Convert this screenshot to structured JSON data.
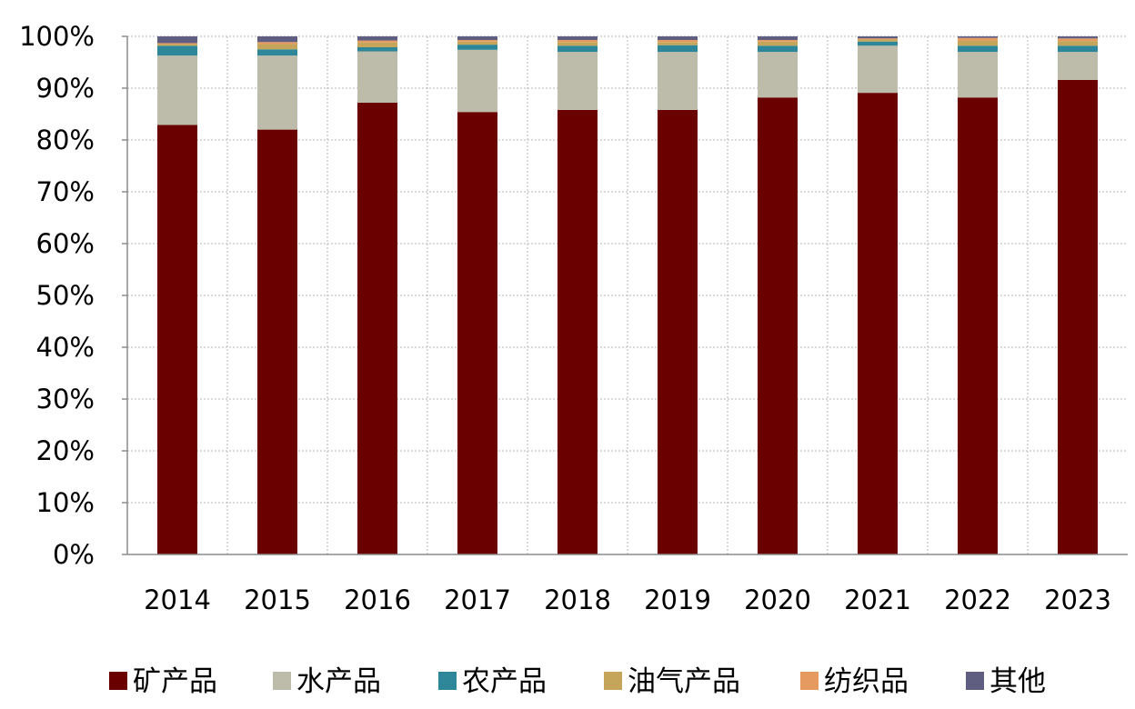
{
  "chart_data": {
    "type": "bar",
    "stacked": true,
    "percent_stacked": true,
    "title": "",
    "xlabel": "",
    "ylabel": "",
    "ylim": [
      0,
      100
    ],
    "y_tick_labels": [
      "0%",
      "10%",
      "20%",
      "30%",
      "40%",
      "50%",
      "60%",
      "70%",
      "80%",
      "90%",
      "100%"
    ],
    "categories": [
      "2014",
      "2015",
      "2016",
      "2017",
      "2018",
      "2019",
      "2020",
      "2021",
      "2022",
      "2023"
    ],
    "grid": true,
    "legend_position": "bottom",
    "series": [
      {
        "name": "矿产品",
        "color": "#6B0000",
        "values": [
          82.9,
          82.0,
          87.2,
          85.4,
          85.8,
          85.8,
          88.2,
          89.1,
          88.2,
          91.6
        ]
      },
      {
        "name": "水产品",
        "color": "#BDBBA9",
        "values": [
          13.4,
          14.3,
          9.9,
          12.0,
          11.2,
          11.2,
          8.8,
          9.1,
          8.8,
          5.4
        ]
      },
      {
        "name": "农产品",
        "color": "#2E8799",
        "values": [
          1.9,
          1.2,
          0.8,
          1.0,
          1.2,
          1.3,
          1.2,
          0.8,
          1.2,
          1.2
        ]
      },
      {
        "name": "油气产品",
        "color": "#C5A55A",
        "values": [
          0.3,
          1.0,
          0.9,
          0.6,
          0.7,
          0.6,
          0.8,
          0.4,
          1.0,
          0.9
        ]
      },
      {
        "name": "纺织品",
        "color": "#E59A5F",
        "values": [
          0.2,
          0.4,
          0.4,
          0.3,
          0.4,
          0.4,
          0.3,
          0.2,
          0.5,
          0.5
        ]
      },
      {
        "name": "其他",
        "color": "#5F5E80",
        "values": [
          1.3,
          1.1,
          0.8,
          0.7,
          0.7,
          0.7,
          0.7,
          0.4,
          0.3,
          0.4
        ]
      }
    ]
  }
}
